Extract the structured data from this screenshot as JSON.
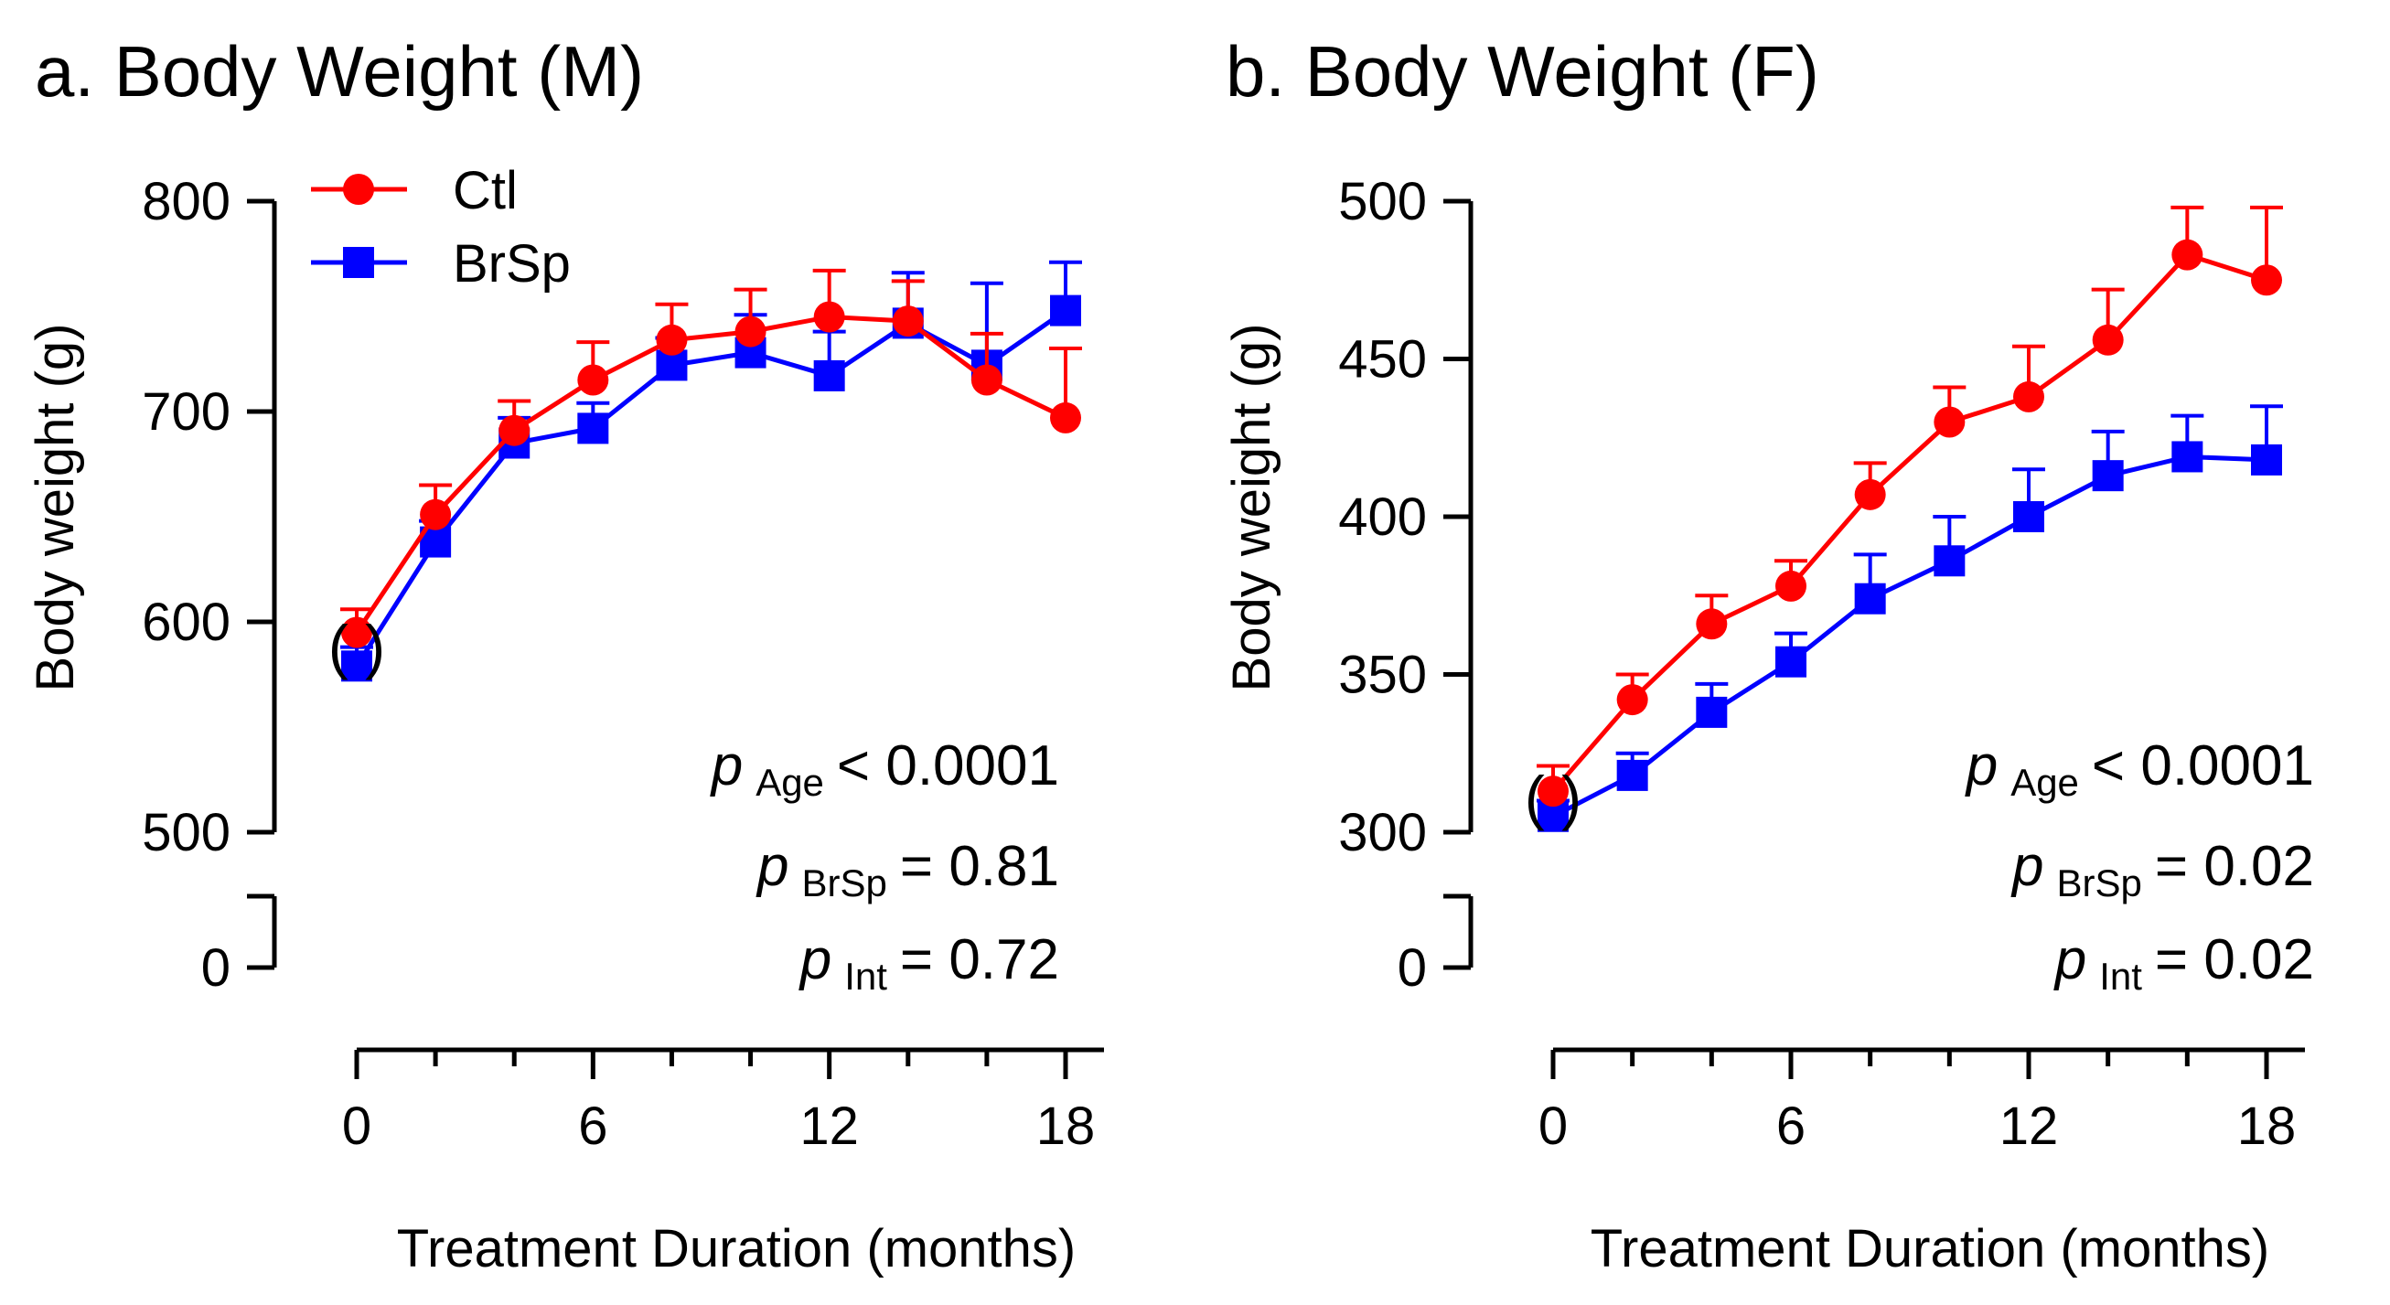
{
  "chart_data": [
    {
      "type": "line",
      "title": "a. Body Weight (M)",
      "xlabel": "Treatment Duration (months)",
      "ylabel": "Body weight (g)",
      "x": [
        0,
        2,
        4,
        6,
        8,
        10,
        12,
        14,
        16,
        18
      ],
      "xticks": [
        0,
        6,
        12,
        18
      ],
      "yticks": [
        500,
        600,
        700,
        800
      ],
      "ybreak_tick": 0,
      "ylim": [
        500,
        800
      ],
      "xlim": [
        0,
        18
      ],
      "series": [
        {
          "name": "Ctl",
          "color": "#ff0000",
          "marker": "circle",
          "values": [
            595,
            651,
            691,
            715,
            734,
            738,
            745,
            743,
            715,
            697
          ],
          "errors": [
            11,
            14,
            14,
            18,
            17,
            20,
            22,
            19,
            22,
            33
          ]
        },
        {
          "name": "BrSp",
          "color": "#0000ff",
          "marker": "square",
          "values": [
            579,
            638,
            685,
            692,
            722,
            728,
            717,
            742,
            722,
            748
          ],
          "errors": [
            9,
            10,
            12,
            12,
            13,
            18,
            21,
            24,
            39,
            23
          ]
        }
      ],
      "baseline_marker": "(   )",
      "legend": {
        "position": "top-left",
        "items": [
          "Ctl",
          "BrSp"
        ]
      },
      "stats": [
        {
          "p": "p",
          "sub": "Age",
          "text": "< 0.0001"
        },
        {
          "p": "p",
          "sub": "BrSp",
          "text": "= 0.81"
        },
        {
          "p": "p",
          "sub": "Int",
          "text": "= 0.72"
        }
      ]
    },
    {
      "type": "line",
      "title": "b. Body Weight (F)",
      "xlabel": "Treatment Duration (months)",
      "ylabel": "Body weight (g)",
      "x": [
        0,
        2,
        4,
        6,
        8,
        10,
        12,
        14,
        16,
        18
      ],
      "xticks": [
        0,
        6,
        12,
        18
      ],
      "yticks": [
        300,
        350,
        400,
        450,
        500
      ],
      "ybreak_tick": 0,
      "ylim": [
        300,
        500
      ],
      "xlim": [
        0,
        18
      ],
      "series": [
        {
          "name": "Ctl",
          "color": "#ff0000",
          "marker": "circle",
          "values": [
            313,
            342,
            366,
            378,
            407,
            430,
            438,
            456,
            483,
            475
          ],
          "errors": [
            8,
            8,
            9,
            8,
            10,
            11,
            16,
            16,
            15,
            23
          ]
        },
        {
          "name": "BrSp",
          "color": "#0000ff",
          "marker": "square",
          "values": [
            305,
            318,
            338,
            354,
            374,
            386,
            400,
            413,
            419,
            418
          ],
          "errors": [
            5,
            7,
            9,
            9,
            14,
            14,
            15,
            14,
            13,
            17
          ]
        }
      ],
      "baseline_marker": "(   )",
      "stats": [
        {
          "p": "p",
          "sub": "Age",
          "text": "< 0.0001"
        },
        {
          "p": "p",
          "sub": "BrSp",
          "text": "= 0.02"
        },
        {
          "p": "p",
          "sub": "Int",
          "text": "= 0.02"
        }
      ]
    }
  ]
}
